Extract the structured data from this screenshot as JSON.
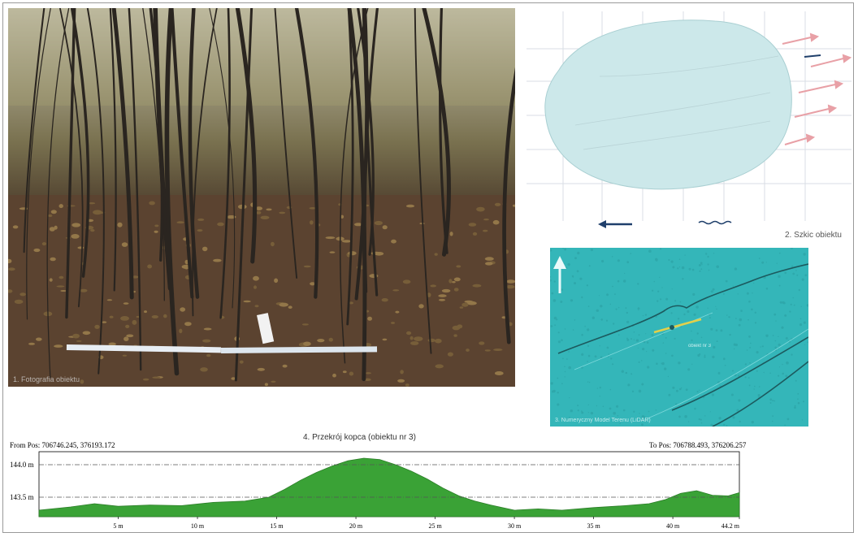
{
  "photo": {
    "caption": "1. Fotografia obiektu"
  },
  "sketch": {
    "caption": "2. Szkic obiektu",
    "fill_color": "#cce8ea",
    "arrow_color": "#e8a0a6",
    "north_arrow_color": "#1f3f6b"
  },
  "lidar": {
    "caption": "3. Numeryczny Model Terenu (LiDAR)",
    "label": "obiekt nr 3",
    "color": "#34b6b9"
  },
  "profile": {
    "title": "4. Przekrój kopca (obiektu nr 3)",
    "from_pos": "From Pos: 706746.245, 376193.172",
    "to_pos": "To Pos: 706788.493, 376206.257",
    "fill_color": "#3aa236",
    "y_labels": [
      "144.0 m",
      "143.5 m"
    ],
    "x_labels": [
      "5 m",
      "10 m",
      "15 m",
      "20 m",
      "25 m",
      "30 m",
      "35 m",
      "40 m",
      "44.2 m"
    ]
  },
  "chart_data": {
    "type": "area",
    "title": "4. Przekrój kopca (obiektu nr 3)",
    "xlabel": "",
    "ylabel": "",
    "x_tick_labels": [
      "5 m",
      "10 m",
      "15 m",
      "20 m",
      "25 m",
      "30 m",
      "35 m",
      "40 m",
      "44.2 m"
    ],
    "y_tick_labels": [
      "144.0 m",
      "143.5 m"
    ],
    "xlim": [
      0,
      44.2
    ],
    "ylim": [
      143.2,
      144.2
    ],
    "series": [
      {
        "x": [
          0,
          2,
          3.5,
          5,
          7,
          9,
          11,
          13,
          14.5,
          15.5,
          16.5,
          17.5,
          18.5,
          19.5,
          20.5,
          21.5,
          22.5,
          23.5,
          24.5,
          25.5,
          26.5,
          27.5,
          28.5,
          30,
          31.5,
          33,
          35,
          37,
          38.5,
          39.5,
          40.5,
          41.5,
          42.5,
          43.5,
          44.2
        ],
        "y": [
          143.3,
          143.35,
          143.4,
          143.36,
          143.38,
          143.37,
          143.42,
          143.44,
          143.5,
          143.62,
          143.76,
          143.88,
          143.98,
          144.06,
          144.1,
          144.08,
          144.0,
          143.9,
          143.78,
          143.64,
          143.52,
          143.44,
          143.38,
          143.3,
          143.32,
          143.3,
          143.34,
          143.37,
          143.4,
          143.46,
          143.56,
          143.6,
          143.53,
          143.52,
          143.57
        ]
      }
    ],
    "grid": true
  }
}
